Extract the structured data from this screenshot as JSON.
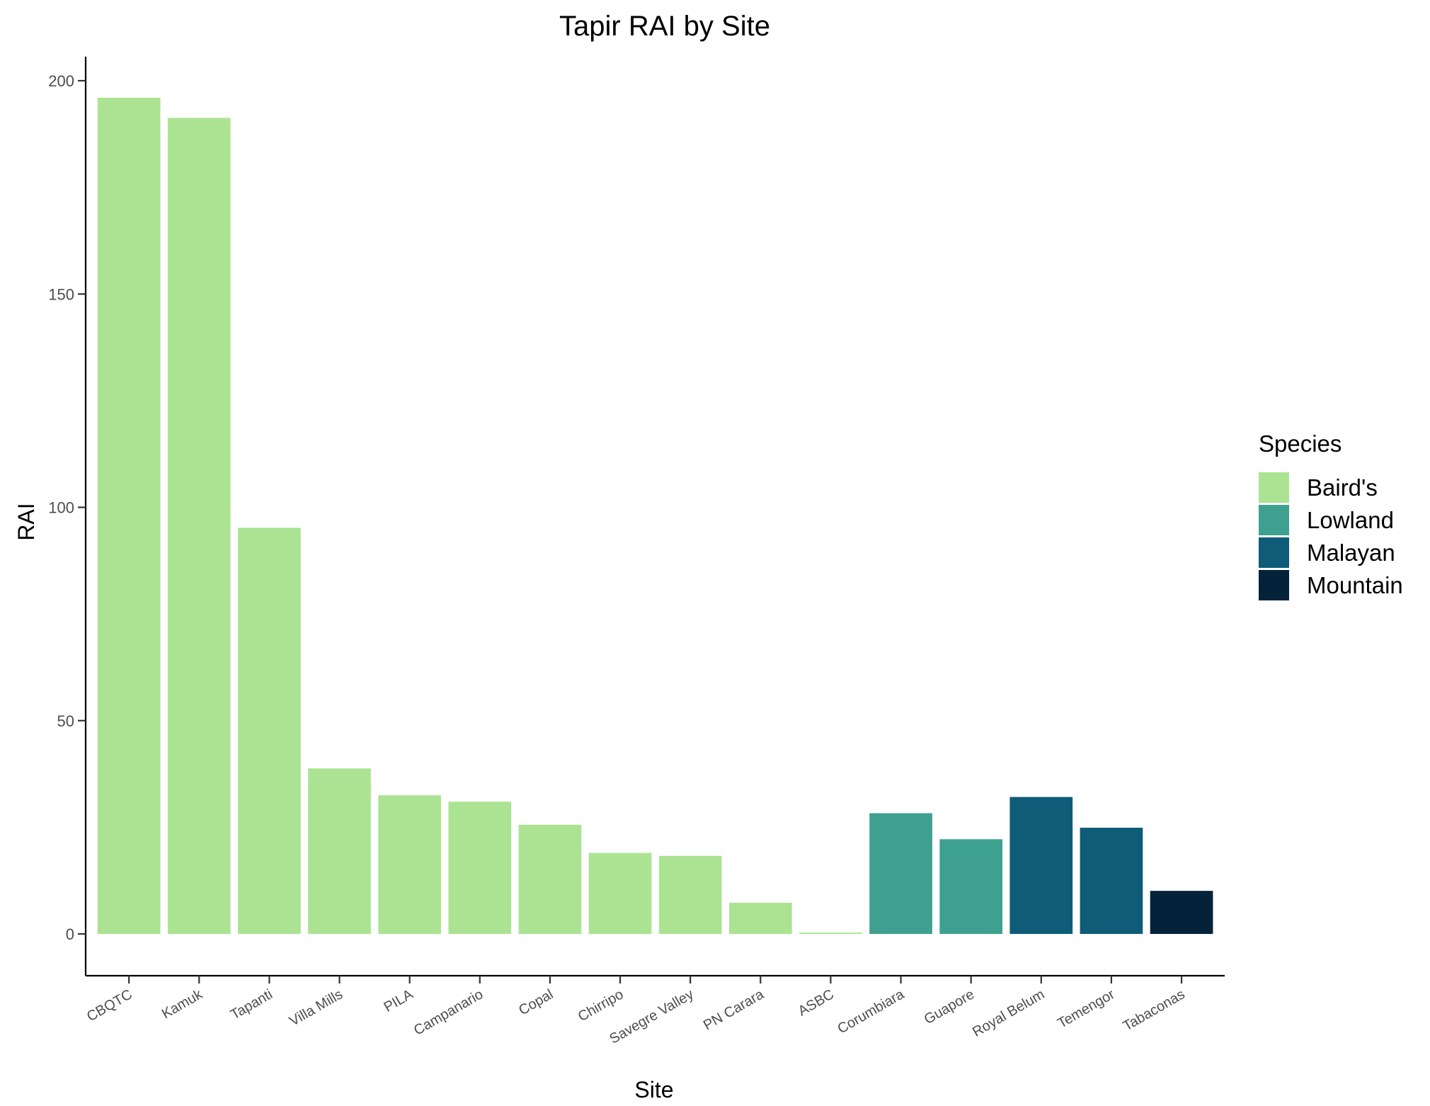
{
  "chart_data": {
    "type": "bar",
    "title": "Tapir RAI by Site",
    "xlabel": "Site",
    "ylabel": "RAI",
    "ylim": [
      -10,
      205
    ],
    "yticks": [
      0,
      50,
      100,
      150,
      200
    ],
    "grid": false,
    "legend": {
      "title": "Species",
      "position": "right",
      "entries": [
        {
          "name": "Baird's",
          "color": "#abe393"
        },
        {
          "name": "Lowland",
          "color": "#3ea190"
        },
        {
          "name": "Malayan",
          "color": "#0e5c78"
        },
        {
          "name": "Mountain",
          "color": "#04233a"
        }
      ]
    },
    "categories": [
      "CBQTC",
      "Kamuk",
      "Tapanti",
      "Villa Mills",
      "PILA",
      "Campanario",
      "Copal",
      "Chirripo",
      "Savegre Valley",
      "PN Carara",
      "ASBC",
      "Corumbiara",
      "Guapore",
      "Royal Belum",
      "Temengor",
      "Tabaconas"
    ],
    "values": [
      196,
      191.3,
      95.2,
      38.8,
      32.5,
      31,
      25.6,
      19,
      18.3,
      7.3,
      0.3,
      28.3,
      22.2,
      32.1,
      24.9,
      10.1
    ],
    "species": [
      "Baird's",
      "Baird's",
      "Baird's",
      "Baird's",
      "Baird's",
      "Baird's",
      "Baird's",
      "Baird's",
      "Baird's",
      "Baird's",
      "Baird's",
      "Lowland",
      "Lowland",
      "Malayan",
      "Malayan",
      "Mountain"
    ]
  }
}
